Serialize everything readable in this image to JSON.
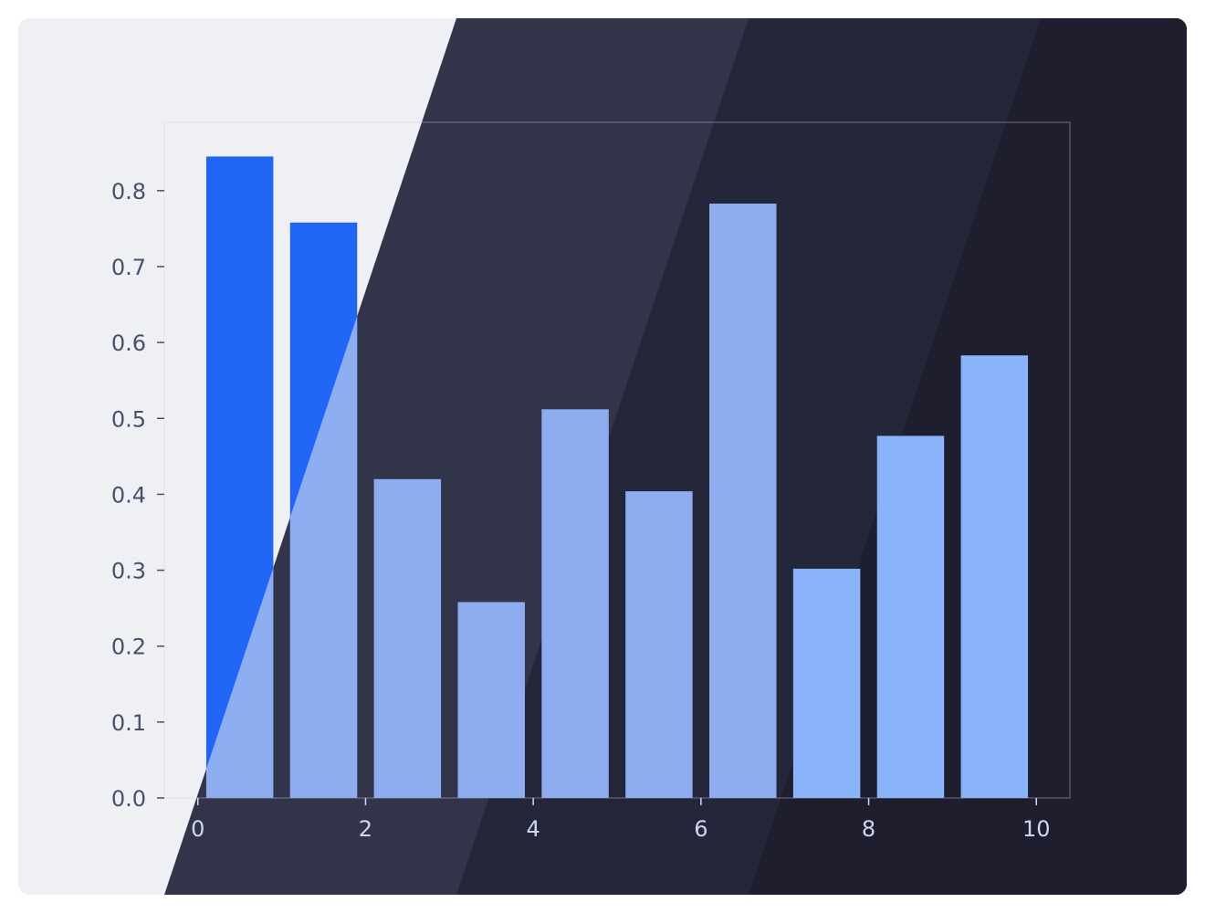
{
  "chart_data": {
    "type": "bar",
    "x": [
      0.5,
      1.5,
      2.5,
      3.5,
      4.5,
      5.5,
      6.5,
      7.5,
      8.5,
      9.5
    ],
    "values": [
      0.845,
      0.758,
      0.42,
      0.258,
      0.512,
      0.404,
      0.783,
      0.302,
      0.477,
      0.583
    ],
    "bar_width": 0.8,
    "title": "",
    "xlabel": "",
    "ylabel": "",
    "xlim": [
      -0.4,
      10.4
    ],
    "ylim": [
      0,
      0.89
    ],
    "xticks": [
      0,
      2,
      4,
      6,
      8,
      10
    ],
    "yticks": [
      0.0,
      0.1,
      0.2,
      0.3,
      0.4,
      0.5,
      0.6,
      0.7,
      0.8
    ],
    "xtick_labels": [
      "0",
      "2",
      "4",
      "6",
      "8",
      "10"
    ],
    "ytick_labels": [
      "0.0",
      "0.1",
      "0.2",
      "0.3",
      "0.4",
      "0.5",
      "0.6",
      "0.7",
      "0.8"
    ],
    "grid": false,
    "legend": "none"
  },
  "colors": {
    "bar_highlight": "#1f66f7",
    "bar_default": "#8eadf1",
    "bar_light": "#8ab4f9",
    "panel_light": "#eff0f4",
    "panel_dark": "#32354a",
    "panel_darker": "#242639",
    "panel_darkest": "#1f1e2e",
    "frame": "#cfd1da",
    "ytick_text": "#4a4f6e",
    "xtick_text": "#cfd6f4"
  }
}
